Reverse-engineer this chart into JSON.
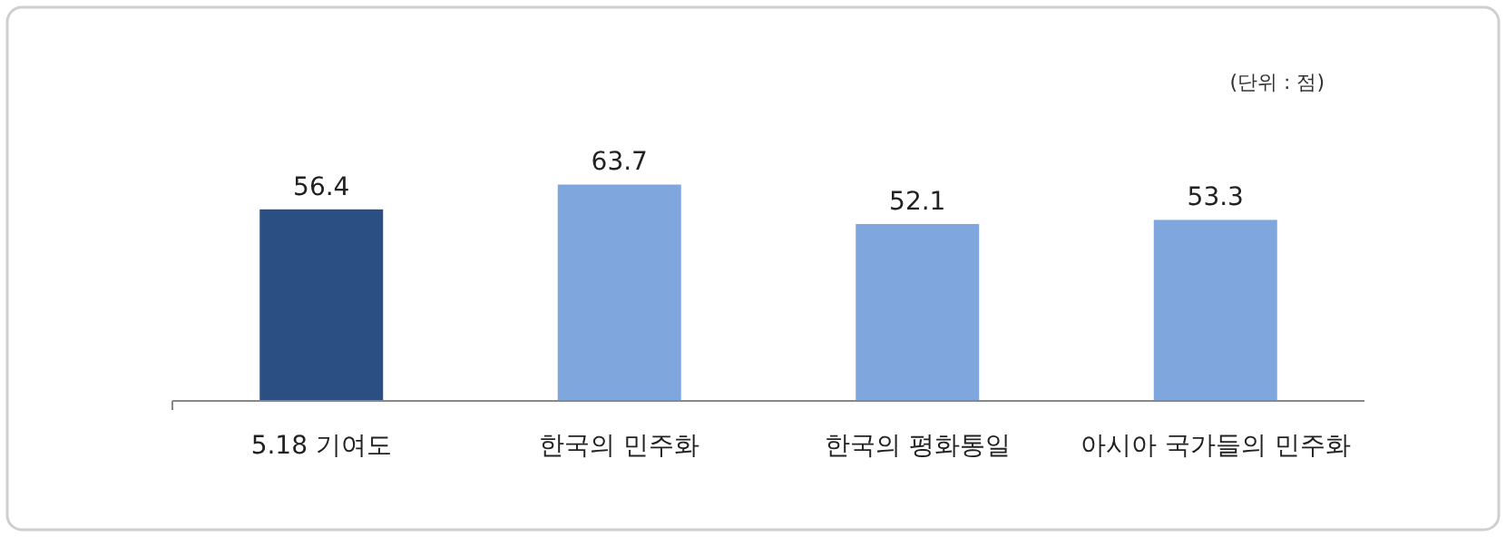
{
  "chart_data": {
    "type": "bar",
    "categories": [
      "5.18 기여도",
      "한국의 민주화",
      "한국의 평화통일",
      "아시아 국가들의 민주화"
    ],
    "values": [
      56.4,
      63.7,
      52.1,
      53.3
    ],
    "colors": [
      "#2b4f82",
      "#7fa7de",
      "#7fa7de",
      "#7fa7de"
    ],
    "data_labels": true,
    "annotations": [
      "(단위 : 점)"
    ]
  }
}
